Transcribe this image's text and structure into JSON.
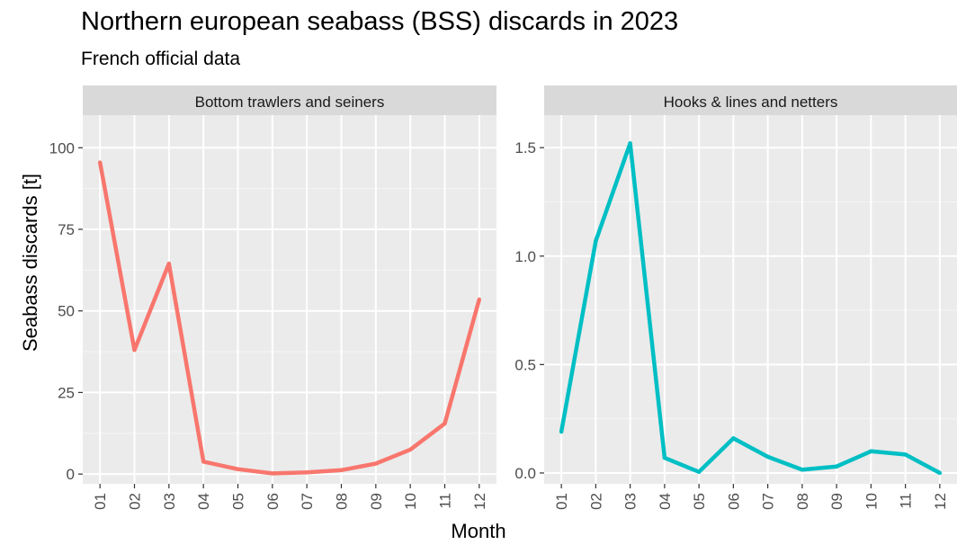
{
  "chart_data": {
    "type": "line",
    "title": "Northern european seabass (BSS) discards in 2023",
    "subtitle": "French official data",
    "xlabel": "Month",
    "ylabel": "Seabass discards [t]",
    "categories": [
      "01",
      "02",
      "03",
      "04",
      "05",
      "06",
      "07",
      "08",
      "09",
      "10",
      "11",
      "12"
    ],
    "grid": true,
    "panels": [
      {
        "strip": "Bottom trawlers and seiners",
        "color": "#F8766D",
        "ylim": [
          -3,
          110
        ],
        "yticks": [
          0,
          25,
          50,
          75,
          100
        ],
        "ytick_labels": [
          "0",
          "25",
          "50",
          "75",
          "100"
        ],
        "values": [
          95.5,
          38.0,
          64.5,
          3.8,
          1.5,
          0.2,
          0.5,
          1.2,
          3.2,
          7.5,
          15.5,
          53.5
        ]
      },
      {
        "strip": "Hooks & lines and netters",
        "color": "#00BFC4",
        "ylim": [
          -0.05,
          1.65
        ],
        "yticks": [
          0,
          0.5,
          1.0,
          1.5
        ],
        "ytick_labels": [
          "0.0",
          "0.5",
          "1.0",
          "1.5"
        ],
        "values": [
          0.19,
          1.07,
          1.52,
          0.07,
          0.005,
          0.16,
          0.075,
          0.015,
          0.03,
          0.1,
          0.085,
          0.0
        ]
      }
    ]
  }
}
